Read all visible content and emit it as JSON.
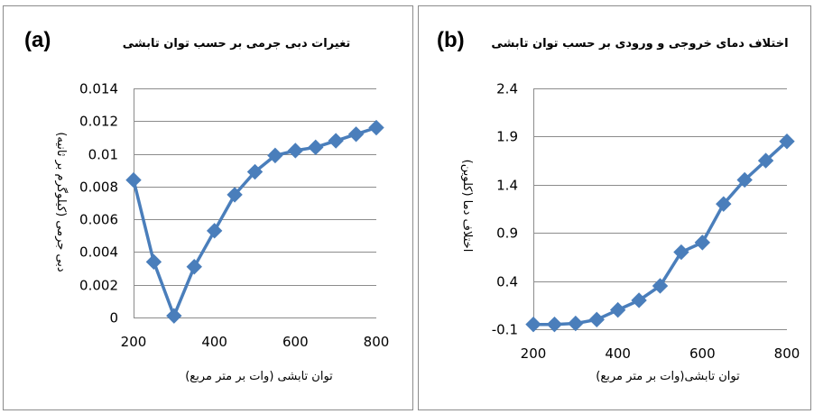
{
  "chart_data": [
    {
      "type": "line",
      "panel_label": "(a)",
      "title": "تغیرات دبی جرمی بر حسب توان تابشی",
      "xlabel": "توان تابشی (وات بر متر مربع)",
      "ylabel": "دبی جرمی (کیلوگرم بر ثانیه)",
      "xlim": [
        200,
        800
      ],
      "ylim": [
        0,
        0.014
      ],
      "xticks": [
        "200",
        "400",
        "600",
        "800"
      ],
      "yticks": [
        "0",
        "0.002",
        "0.004",
        "0.006",
        "0.008",
        "0.01",
        "0.012",
        "0.014"
      ],
      "grid": "horizontal",
      "color": "#4a7ebb",
      "x": [
        200,
        250,
        300,
        350,
        400,
        450,
        500,
        550,
        600,
        650,
        700,
        750,
        800
      ],
      "y": [
        0.0084,
        0.0034,
        0.0001,
        0.0031,
        0.0053,
        0.0075,
        0.0089,
        0.0099,
        0.0102,
        0.0104,
        0.0108,
        0.0112,
        0.0116
      ]
    },
    {
      "type": "line",
      "panel_label": "(b)",
      "title": "اختلاف دمای خروجی و ورودی بر حسب توان تابشی",
      "xlabel": "توان تابشی(وات بر متر مربع)",
      "ylabel": "اختلاف دما (کلوین)",
      "xlim": [
        200,
        800
      ],
      "ylim": [
        -0.1,
        2.4
      ],
      "xticks": [
        "200",
        "400",
        "600",
        "800"
      ],
      "yticks": [
        "-0.1",
        "0.4",
        "0.9",
        "1.4",
        "1.9",
        "2.4"
      ],
      "grid": "horizontal",
      "color": "#4a7ebb",
      "x": [
        200,
        250,
        300,
        350,
        400,
        450,
        500,
        550,
        600,
        650,
        700,
        750,
        800
      ],
      "y": [
        -0.05,
        -0.05,
        -0.04,
        0.0,
        0.1,
        0.2,
        0.35,
        0.7,
        0.8,
        1.2,
        1.45,
        1.65,
        1.85
      ]
    }
  ]
}
